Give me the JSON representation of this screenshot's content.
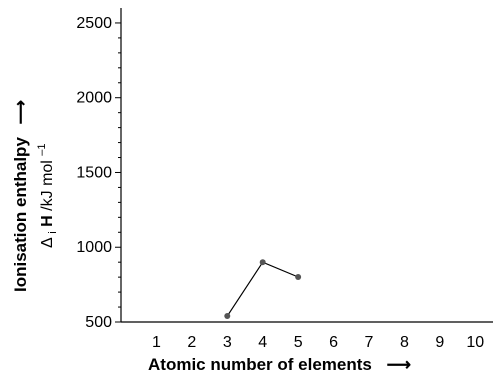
{
  "chart_data": {
    "type": "line",
    "title": "",
    "xlabel": "Atomic number of elements",
    "ylabel_outer": "Ionisation enthalpy",
    "ylabel_inner_symbol": "Δ",
    "ylabel_inner_subscript": "i",
    "ylabel_inner_bold": "H",
    "ylabel_inner_units": "/kJ mol",
    "ylabel_inner_superscript": "–1",
    "arrow_glyph": "⟶",
    "xlim": [
      0,
      10.5
    ],
    "ylim": [
      500,
      2600
    ],
    "x_ticks": [
      1,
      2,
      3,
      4,
      5,
      6,
      7,
      8,
      9,
      10
    ],
    "y_ticks": [
      500,
      1000,
      1500,
      2000,
      2500
    ],
    "y_minor_step": 100,
    "grid": false,
    "series": [
      {
        "x": [
          3,
          4,
          5
        ],
        "y": [
          540,
          900,
          801
        ]
      }
    ],
    "colors": {
      "axis": "#000000",
      "line": "#000000",
      "marker": "#555555"
    }
  }
}
